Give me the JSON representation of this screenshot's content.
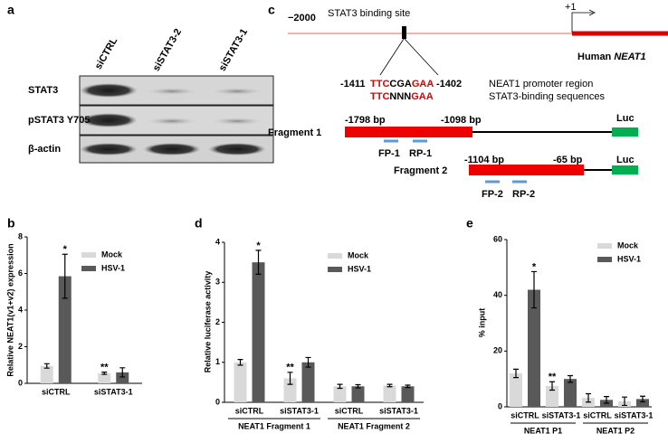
{
  "labels": [
    "a",
    "b",
    "c",
    "d",
    "e"
  ],
  "blot": {
    "columns": [
      "siCTRL",
      "siSTAT3-2",
      "siSTAT3-1"
    ],
    "rows": [
      "STAT3",
      "pSTAT3 Y705",
      "β-actin"
    ]
  },
  "diagram": {
    "start": "−2000",
    "tss": "+1",
    "site": "STAT3 binding site",
    "gene": [
      "Human ",
      "NEAT1"
    ],
    "seq_start": "-1411",
    "seq_end": "-1402",
    "sequence": [
      "TTC",
      "CGA",
      "GAA"
    ],
    "consensus": [
      "TTC",
      "NNN",
      "GAA"
    ],
    "seq_note": "NEAT1 promoter region",
    "consensus_note": "STAT3-binding sequences",
    "fragments": [
      {
        "name": "Fragment 1",
        "start": "-1798 bp",
        "end": "-1098 bp",
        "reporter": "Luc",
        "primers": [
          "FP-1",
          "RP-1"
        ]
      },
      {
        "name": "Fragment 2",
        "start": "-1104 bp",
        "end": "-65 bp",
        "reporter": "Luc",
        "primers": [
          "FP-2",
          "RP-2"
        ]
      }
    ]
  },
  "chart_data": [
    {
      "type": "bar",
      "ylabel": "Relative NEAT1(v1+v2) expression",
      "categories": [
        "siCTRL",
        "siSTAT3-1"
      ],
      "ylim": [
        0,
        8
      ],
      "yticks": [
        0,
        2,
        4,
        6,
        8
      ],
      "series": [
        {
          "name": "Mock",
          "color": "#d9d9d9",
          "values": [
            0.95,
            0.55
          ],
          "errors": [
            0.12,
            0.06
          ]
        },
        {
          "name": "HSV-1",
          "color": "#595959",
          "values": [
            5.85,
            0.6
          ],
          "errors": [
            1.2,
            0.25
          ]
        }
      ],
      "annotations": [
        "*",
        "**"
      ]
    },
    {
      "type": "bar",
      "ylabel": "Relative luciferase activity",
      "categories": [
        "siCTRL",
        "siSTAT3-1",
        "siCTRL",
        "siSTAT3-1"
      ],
      "groups": [
        "NEAT1 Fragment 1",
        "NEAT1 Fragment 2"
      ],
      "ylim": [
        0,
        4
      ],
      "yticks": [
        0,
        1,
        2,
        3,
        4
      ],
      "series": [
        {
          "name": "Mock",
          "color": "#d9d9d9",
          "values": [
            1.0,
            0.6,
            0.4,
            0.42
          ],
          "errors": [
            0.07,
            0.15,
            0.05,
            0.03
          ]
        },
        {
          "name": "HSV-1",
          "color": "#595959",
          "values": [
            3.5,
            1.0,
            0.4,
            0.4
          ],
          "errors": [
            0.3,
            0.12,
            0.04,
            0.03
          ]
        }
      ],
      "annotations": [
        "*",
        "**"
      ]
    },
    {
      "type": "bar",
      "ylabel": "% input",
      "categories": [
        "siCTRL",
        "siSTAT3-1",
        "siCTRL",
        "siSTAT3-1"
      ],
      "groups": [
        "NEAT1 P1",
        "NEAT1 P2"
      ],
      "ylim": [
        0,
        60
      ],
      "yticks": [
        0,
        20,
        40,
        60
      ],
      "series": [
        {
          "name": "Mock",
          "color": "#d9d9d9",
          "values": [
            12,
            7.5,
            3.2,
            2
          ],
          "errors": [
            1.5,
            1.5,
            1.5,
            1.5
          ]
        },
        {
          "name": "HSV-1",
          "color": "#595959",
          "values": [
            42,
            10,
            2.5,
            2.8
          ],
          "errors": [
            6.5,
            1.2,
            1.2,
            1
          ]
        }
      ],
      "annotations": [
        "*",
        "**"
      ]
    }
  ]
}
